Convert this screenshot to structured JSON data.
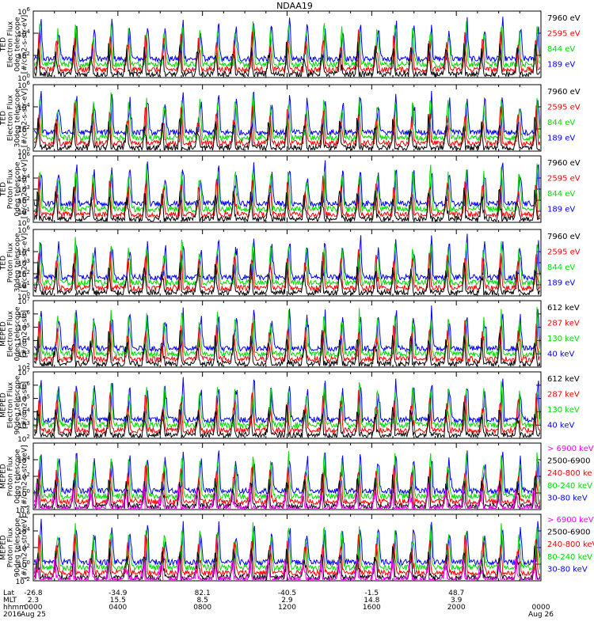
{
  "title": "NDAA19",
  "colors": {
    "black": "#000000",
    "red": "#ff0000",
    "green": "#00dd00",
    "blue": "#0000ff",
    "magenta": "#ff00ff"
  },
  "chart_data": [
    {
      "type": "line",
      "scale": "log",
      "ylim": [
        1,
        1000000
      ],
      "ylabel": [
        "TED",
        "Electron Flux",
        "0deg telescope",
        "[#/cm2-s-str-eV]"
      ],
      "yticks": [
        {
          "label": "10",
          "exp": "6",
          "value": 1000000
        },
        {
          "label": "10",
          "exp": "4",
          "value": 10000
        },
        {
          "label": "10",
          "exp": "2",
          "value": 100
        },
        {
          "label": "10",
          "exp": "0",
          "value": 1
        }
      ],
      "legend": [
        {
          "label": "7960 eV",
          "color": "black"
        },
        {
          "label": "2595 eV",
          "color": "red"
        },
        {
          "label": "844 eV",
          "color": "green"
        },
        {
          "label": "189 eV",
          "color": "blue"
        }
      ],
      "series": [
        {
          "name": "7960 eV",
          "color": "black"
        },
        {
          "name": "2595 eV",
          "color": "red"
        },
        {
          "name": "844 eV",
          "color": "green"
        },
        {
          "name": "189 eV",
          "color": "blue"
        }
      ]
    },
    {
      "type": "line",
      "scale": "log",
      "ylim": [
        1,
        1000000
      ],
      "ylabel": [
        "TED",
        "Electron Flux",
        "30deg telescope",
        "[#/cm2-s-str-eV]"
      ],
      "yticks": [
        {
          "label": "10",
          "exp": "6",
          "value": 1000000
        },
        {
          "label": "10",
          "exp": "4",
          "value": 10000
        },
        {
          "label": "10",
          "exp": "2",
          "value": 100
        },
        {
          "label": "10",
          "exp": "0",
          "value": 1
        }
      ],
      "legend": [
        {
          "label": "7960 eV",
          "color": "black"
        },
        {
          "label": "2595 eV",
          "color": "red"
        },
        {
          "label": "844 eV",
          "color": "green"
        },
        {
          "label": "189 eV",
          "color": "blue"
        }
      ],
      "series": [
        {
          "name": "7960 eV",
          "color": "black"
        },
        {
          "name": "2595 eV",
          "color": "red"
        },
        {
          "name": "844 eV",
          "color": "green"
        },
        {
          "name": "189 eV",
          "color": "blue"
        }
      ]
    },
    {
      "type": "line",
      "scale": "log",
      "ylim": [
        1,
        1000000
      ],
      "ylabel": [
        "TED",
        "Proton Flux",
        "0deg telescope",
        "[#/cm2-s-str-eV]"
      ],
      "yticks": [
        {
          "label": "10",
          "exp": "6",
          "value": 1000000
        },
        {
          "label": "10",
          "exp": "4",
          "value": 10000
        },
        {
          "label": "10",
          "exp": "3",
          "value": 1000
        },
        {
          "label": "10",
          "exp": "2",
          "value": 100
        },
        {
          "label": "10",
          "exp": "1",
          "value": 10
        },
        {
          "label": "10",
          "exp": "0",
          "value": 1
        }
      ],
      "legend": [
        {
          "label": "7960 eV",
          "color": "black"
        },
        {
          "label": "2595 eV",
          "color": "red"
        },
        {
          "label": "844 eV",
          "color": "green"
        },
        {
          "label": "189 eV",
          "color": "blue"
        }
      ],
      "series": [
        {
          "name": "7960 eV",
          "color": "black"
        },
        {
          "name": "2595 eV",
          "color": "red"
        },
        {
          "name": "844 eV",
          "color": "green"
        },
        {
          "name": "189 eV",
          "color": "blue"
        }
      ]
    },
    {
      "type": "line",
      "scale": "log",
      "ylim": [
        1,
        1000000
      ],
      "ylabel": [
        "TED",
        "Proton Flux",
        "30deg telescope",
        "[#/cm2-s-str-eV]"
      ],
      "yticks": [
        {
          "label": "10",
          "exp": "6",
          "value": 1000000
        },
        {
          "label": "10",
          "exp": "4",
          "value": 10000
        },
        {
          "label": "10",
          "exp": "3",
          "value": 1000
        },
        {
          "label": "10",
          "exp": "2",
          "value": 100
        },
        {
          "label": "10",
          "exp": "1",
          "value": 10
        },
        {
          "label": "10",
          "exp": "0",
          "value": 1
        }
      ],
      "legend": [
        {
          "label": "7960 eV",
          "color": "black"
        },
        {
          "label": "2595 eV",
          "color": "red"
        },
        {
          "label": "844 eV",
          "color": "green"
        },
        {
          "label": "189 eV",
          "color": "blue"
        }
      ],
      "series": [
        {
          "name": "7960 eV",
          "color": "black"
        },
        {
          "name": "2595 eV",
          "color": "red"
        },
        {
          "name": "844 eV",
          "color": "green"
        },
        {
          "name": "189 eV",
          "color": "blue"
        }
      ]
    },
    {
      "type": "line",
      "scale": "log",
      "ylim": [
        100,
        10000000
      ],
      "ylabel": [
        "MEPED",
        "Electron Flux",
        "0deg telescope",
        "[#/cm2-s-str]"
      ],
      "yticks": [
        {
          "label": "10",
          "exp": "7",
          "value": 10000000
        },
        {
          "label": "10",
          "exp": "6",
          "value": 1000000
        },
        {
          "label": "10",
          "exp": "5",
          "value": 100000
        },
        {
          "label": "10",
          "exp": "4",
          "value": 10000
        },
        {
          "label": "10",
          "exp": "3",
          "value": 1000
        },
        {
          "label": "10",
          "exp": "2",
          "value": 100
        }
      ],
      "legend": [
        {
          "label": "612 keV",
          "color": "black"
        },
        {
          "label": "287 keV",
          "color": "red"
        },
        {
          "label": "130 keV",
          "color": "green"
        },
        {
          "label": "40 keV",
          "color": "blue"
        }
      ],
      "series": [
        {
          "name": "612 keV",
          "color": "black"
        },
        {
          "name": "287 keV",
          "color": "red"
        },
        {
          "name": "130 keV",
          "color": "green"
        },
        {
          "name": "40 keV",
          "color": "blue"
        }
      ]
    },
    {
      "type": "line",
      "scale": "log",
      "ylim": [
        100,
        10000000
      ],
      "ylabel": [
        "MEPED",
        "Electron Flux",
        "90deg telescope",
        "[#/cm2-s-str]"
      ],
      "yticks": [
        {
          "label": "10",
          "exp": "7",
          "value": 10000000
        },
        {
          "label": "10",
          "exp": "6",
          "value": 1000000
        },
        {
          "label": "10",
          "exp": "5",
          "value": 100000
        },
        {
          "label": "10",
          "exp": "4",
          "value": 10000
        },
        {
          "label": "10",
          "exp": "3",
          "value": 1000
        },
        {
          "label": "10",
          "exp": "2",
          "value": 100
        }
      ],
      "legend": [
        {
          "label": "612 keV",
          "color": "black"
        },
        {
          "label": "287 keV",
          "color": "red"
        },
        {
          "label": "130 keV",
          "color": "green"
        },
        {
          "label": "40 keV",
          "color": "blue"
        }
      ],
      "series": [
        {
          "name": "612 keV",
          "color": "black"
        },
        {
          "name": "287 keV",
          "color": "red"
        },
        {
          "name": "130 keV",
          "color": "green"
        },
        {
          "name": "40 keV",
          "color": "blue"
        }
      ]
    },
    {
      "type": "line",
      "scale": "log",
      "ylim": [
        0.01,
        1000000
      ],
      "ylabel": [
        "MEPED",
        "Proton Flux",
        "0deg telescope",
        "[#/cm2-s-str-keV]"
      ],
      "yticks": [
        {
          "label": "10",
          "exp": "4",
          "value": 10000
        },
        {
          "label": "10",
          "exp": "2",
          "value": 100
        },
        {
          "label": "10",
          "exp": "0",
          "value": 1
        },
        {
          "label": "10",
          "exp": "-2",
          "value": 0.01
        }
      ],
      "legend": [
        {
          "label": "> 6900 keV",
          "color": "magenta"
        },
        {
          "label": "2500-6900",
          "color": "black"
        },
        {
          "label": "240-800 ke",
          "color": "red"
        },
        {
          "label": "80-240 keV",
          "color": "green"
        },
        {
          "label": "30-80 keV",
          "color": "blue"
        }
      ],
      "series": [
        {
          "name": "> 6900 keV",
          "color": "magenta"
        },
        {
          "name": "2500-6900",
          "color": "black"
        },
        {
          "name": "240-800 ke",
          "color": "red"
        },
        {
          "name": "80-240 keV",
          "color": "green"
        },
        {
          "name": "30-80 keV",
          "color": "blue"
        }
      ]
    },
    {
      "type": "line",
      "scale": "log",
      "ylim": [
        0.01,
        1000000
      ],
      "ylabel": [
        "MEPED",
        "Proton Flux",
        "90deg telescope",
        "[#/cm2-s-str-keV]"
      ],
      "yticks": [
        {
          "label": "10",
          "exp": "6",
          "value": 1000000
        },
        {
          "label": "10",
          "exp": "4",
          "value": 10000
        },
        {
          "label": "10",
          "exp": "2",
          "value": 100
        },
        {
          "label": "10",
          "exp": "0",
          "value": 1
        },
        {
          "label": "10",
          "exp": "-2",
          "value": 0.01
        }
      ],
      "legend": [
        {
          "label": "> 6900 keV",
          "color": "magenta"
        },
        {
          "label": "2500-6900",
          "color": "black"
        },
        {
          "label": "240-800 keV",
          "color": "red"
        },
        {
          "label": "80-240 keV",
          "color": "green"
        },
        {
          "label": "30-80 keV",
          "color": "blue"
        }
      ],
      "series": [
        {
          "name": "> 6900 keV",
          "color": "magenta"
        },
        {
          "name": "2500-6900",
          "color": "black"
        },
        {
          "name": "240-800 keV",
          "color": "red"
        },
        {
          "name": "80-240 keV",
          "color": "green"
        },
        {
          "name": "30-80 keV",
          "color": "blue"
        }
      ]
    }
  ],
  "time_axis": {
    "row_labels": [
      "Lat",
      "MLT",
      "hhmm",
      "2016"
    ],
    "ticks": [
      {
        "hour": 0,
        "lat": "-26.8",
        "mlt": "2.3",
        "hhmm": "0000",
        "date": "Aug 25"
      },
      {
        "hour": 4,
        "lat": "-34.9",
        "mlt": "15.5",
        "hhmm": "0400",
        "date": ""
      },
      {
        "hour": 8,
        "lat": "82.1",
        "mlt": "8.5",
        "hhmm": "0800",
        "date": ""
      },
      {
        "hour": 12,
        "lat": "-40.5",
        "mlt": "2.9",
        "hhmm": "1200",
        "date": ""
      },
      {
        "hour": 16,
        "lat": "-1.5",
        "mlt": "14.8",
        "hhmm": "1600",
        "date": ""
      },
      {
        "hour": 20,
        "lat": "48.7",
        "mlt": "3.9",
        "hhmm": "2000",
        "date": ""
      },
      {
        "hour": 24,
        "lat": "",
        "mlt": "",
        "hhmm": "0000",
        "date": "Aug 26"
      }
    ]
  }
}
